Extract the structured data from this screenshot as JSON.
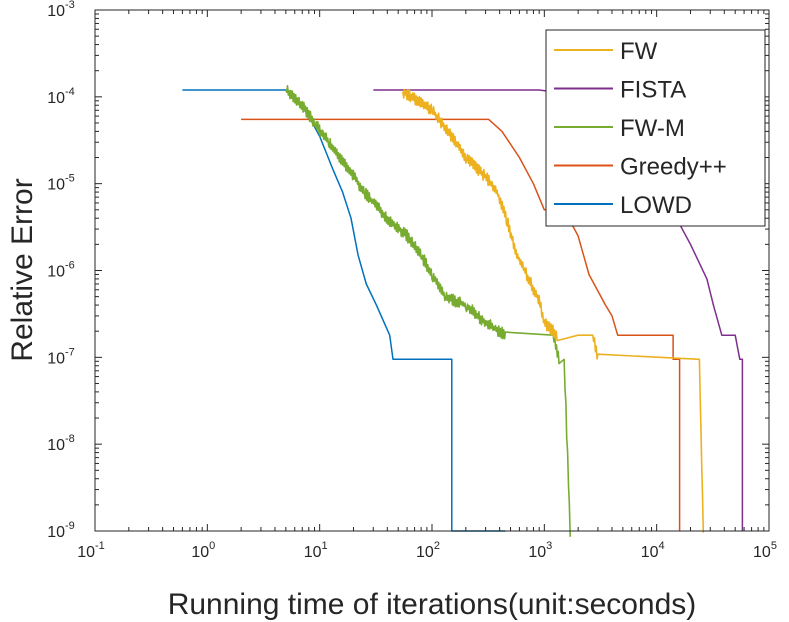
{
  "chart_data": {
    "type": "line",
    "title": "",
    "xlabel": "Running time of iterations(unit:seconds)",
    "ylabel": "Relative Error",
    "xscale": "log",
    "yscale": "log",
    "xlim": [
      0.1,
      100000
    ],
    "ylim": [
      1e-09,
      0.001
    ],
    "x_ticks": [
      {
        "base": "10",
        "exp": "-1",
        "value": 0.1
      },
      {
        "base": "10",
        "exp": "0",
        "value": 1
      },
      {
        "base": "10",
        "exp": "1",
        "value": 10
      },
      {
        "base": "10",
        "exp": "2",
        "value": 100
      },
      {
        "base": "10",
        "exp": "3",
        "value": 1000
      },
      {
        "base": "10",
        "exp": "4",
        "value": 10000
      },
      {
        "base": "10",
        "exp": "5",
        "value": 100000
      }
    ],
    "y_ticks": [
      {
        "base": "10",
        "exp": "-9",
        "value": 1e-09
      },
      {
        "base": "10",
        "exp": "-8",
        "value": 1e-08
      },
      {
        "base": "10",
        "exp": "-7",
        "value": 1e-07
      },
      {
        "base": "10",
        "exp": "-6",
        "value": 1e-06
      },
      {
        "base": "10",
        "exp": "-5",
        "value": 1e-05
      },
      {
        "base": "10",
        "exp": "-4",
        "value": 0.0001
      },
      {
        "base": "10",
        "exp": "-3",
        "value": 0.001
      }
    ],
    "grid": false,
    "legend_position": "top-right",
    "series": [
      {
        "name": "FW",
        "color": "#EDB120",
        "noise": true,
        "points": [
          [
            55,
            0.000115
          ],
          [
            100,
            7e-05
          ],
          [
            140,
            4e-05
          ],
          [
            200,
            2e-05
          ],
          [
            300,
            1.2e-05
          ],
          [
            380,
            8e-06
          ],
          [
            460,
            4e-06
          ],
          [
            560,
            1.6e-06
          ],
          [
            900,
            4.5e-07
          ],
          [
            1000,
            2.5e-07
          ],
          [
            1300,
            1.8e-07
          ],
          [
            2000,
            1.8e-07
          ],
          [
            2700,
            1.8e-07
          ],
          [
            3000,
            9.5e-08
          ],
          [
            24000,
            9.5e-08
          ],
          [
            26000,
            1e-09
          ]
        ]
      },
      {
        "name": "FISTA",
        "color": "#7E2F8E",
        "noise": false,
        "points": [
          [
            30,
            0.00012
          ],
          [
            900,
            0.00012
          ],
          [
            1500,
            0.00011
          ],
          [
            2500,
            9e-05
          ],
          [
            4000,
            6e-05
          ],
          [
            6000,
            3e-05
          ],
          [
            10000,
            1e-05
          ],
          [
            15000,
            4e-06
          ],
          [
            20000,
            2e-06
          ],
          [
            28000,
            8e-07
          ],
          [
            32000,
            4e-07
          ],
          [
            38000,
            1.8e-07
          ],
          [
            50000,
            1.8e-07
          ],
          [
            55000,
            9.5e-08
          ],
          [
            58000,
            9.5e-08
          ],
          [
            58000,
            1e-09
          ]
        ]
      },
      {
        "name": "FW-M",
        "color": "#77AC30",
        "noise": true,
        "points": [
          [
            5,
            0.00012
          ],
          [
            7,
            8e-05
          ],
          [
            9,
            5e-05
          ],
          [
            12,
            3e-05
          ],
          [
            18,
            1.5e-05
          ],
          [
            25,
            8e-06
          ],
          [
            40,
            4e-06
          ],
          [
            60,
            2.5e-06
          ],
          [
            80,
            1.5e-06
          ],
          [
            100,
            9e-07
          ],
          [
            130,
            5e-07
          ],
          [
            200,
            4e-07
          ],
          [
            300,
            2.5e-07
          ],
          [
            450,
            1.8e-07
          ],
          [
            1200,
            1.8e-07
          ],
          [
            1350,
            9.5e-08
          ],
          [
            1500,
            9.5e-08
          ],
          [
            1700,
            1e-09
          ]
        ]
      },
      {
        "name": "Greedy++",
        "color": "#D95319",
        "noise": false,
        "points": [
          [
            2,
            5.5e-05
          ],
          [
            320,
            5.5e-05
          ],
          [
            420,
            4e-05
          ],
          [
            600,
            2e-05
          ],
          [
            800,
            1e-05
          ],
          [
            1000,
            5e-06
          ],
          [
            1500,
            5e-06
          ],
          [
            2000,
            2.5e-06
          ],
          [
            2500,
            9e-07
          ],
          [
            3500,
            4e-07
          ],
          [
            4000,
            3e-07
          ],
          [
            4500,
            1.8e-07
          ],
          [
            6000,
            1.8e-07
          ],
          [
            14000,
            1.8e-07
          ],
          [
            14000,
            9.5e-08
          ],
          [
            16000,
            9.5e-08
          ],
          [
            16000,
            1e-09
          ]
        ]
      },
      {
        "name": "LOWD",
        "color": "#0072BD",
        "noise": false,
        "points": [
          [
            0.6,
            0.00012
          ],
          [
            5,
            0.00012
          ],
          [
            6,
            0.0001
          ],
          [
            8,
            6e-05
          ],
          [
            10,
            3.5e-05
          ],
          [
            13,
            1.5e-05
          ],
          [
            16,
            8e-06
          ],
          [
            19,
            4e-06
          ],
          [
            22,
            1.5e-06
          ],
          [
            26,
            7e-07
          ],
          [
            32,
            4e-07
          ],
          [
            42,
            1.8e-07
          ],
          [
            45,
            9.5e-08
          ],
          [
            150,
            9.5e-08
          ],
          [
            150,
            1e-09
          ],
          [
            450,
            1e-09
          ]
        ]
      }
    ]
  }
}
